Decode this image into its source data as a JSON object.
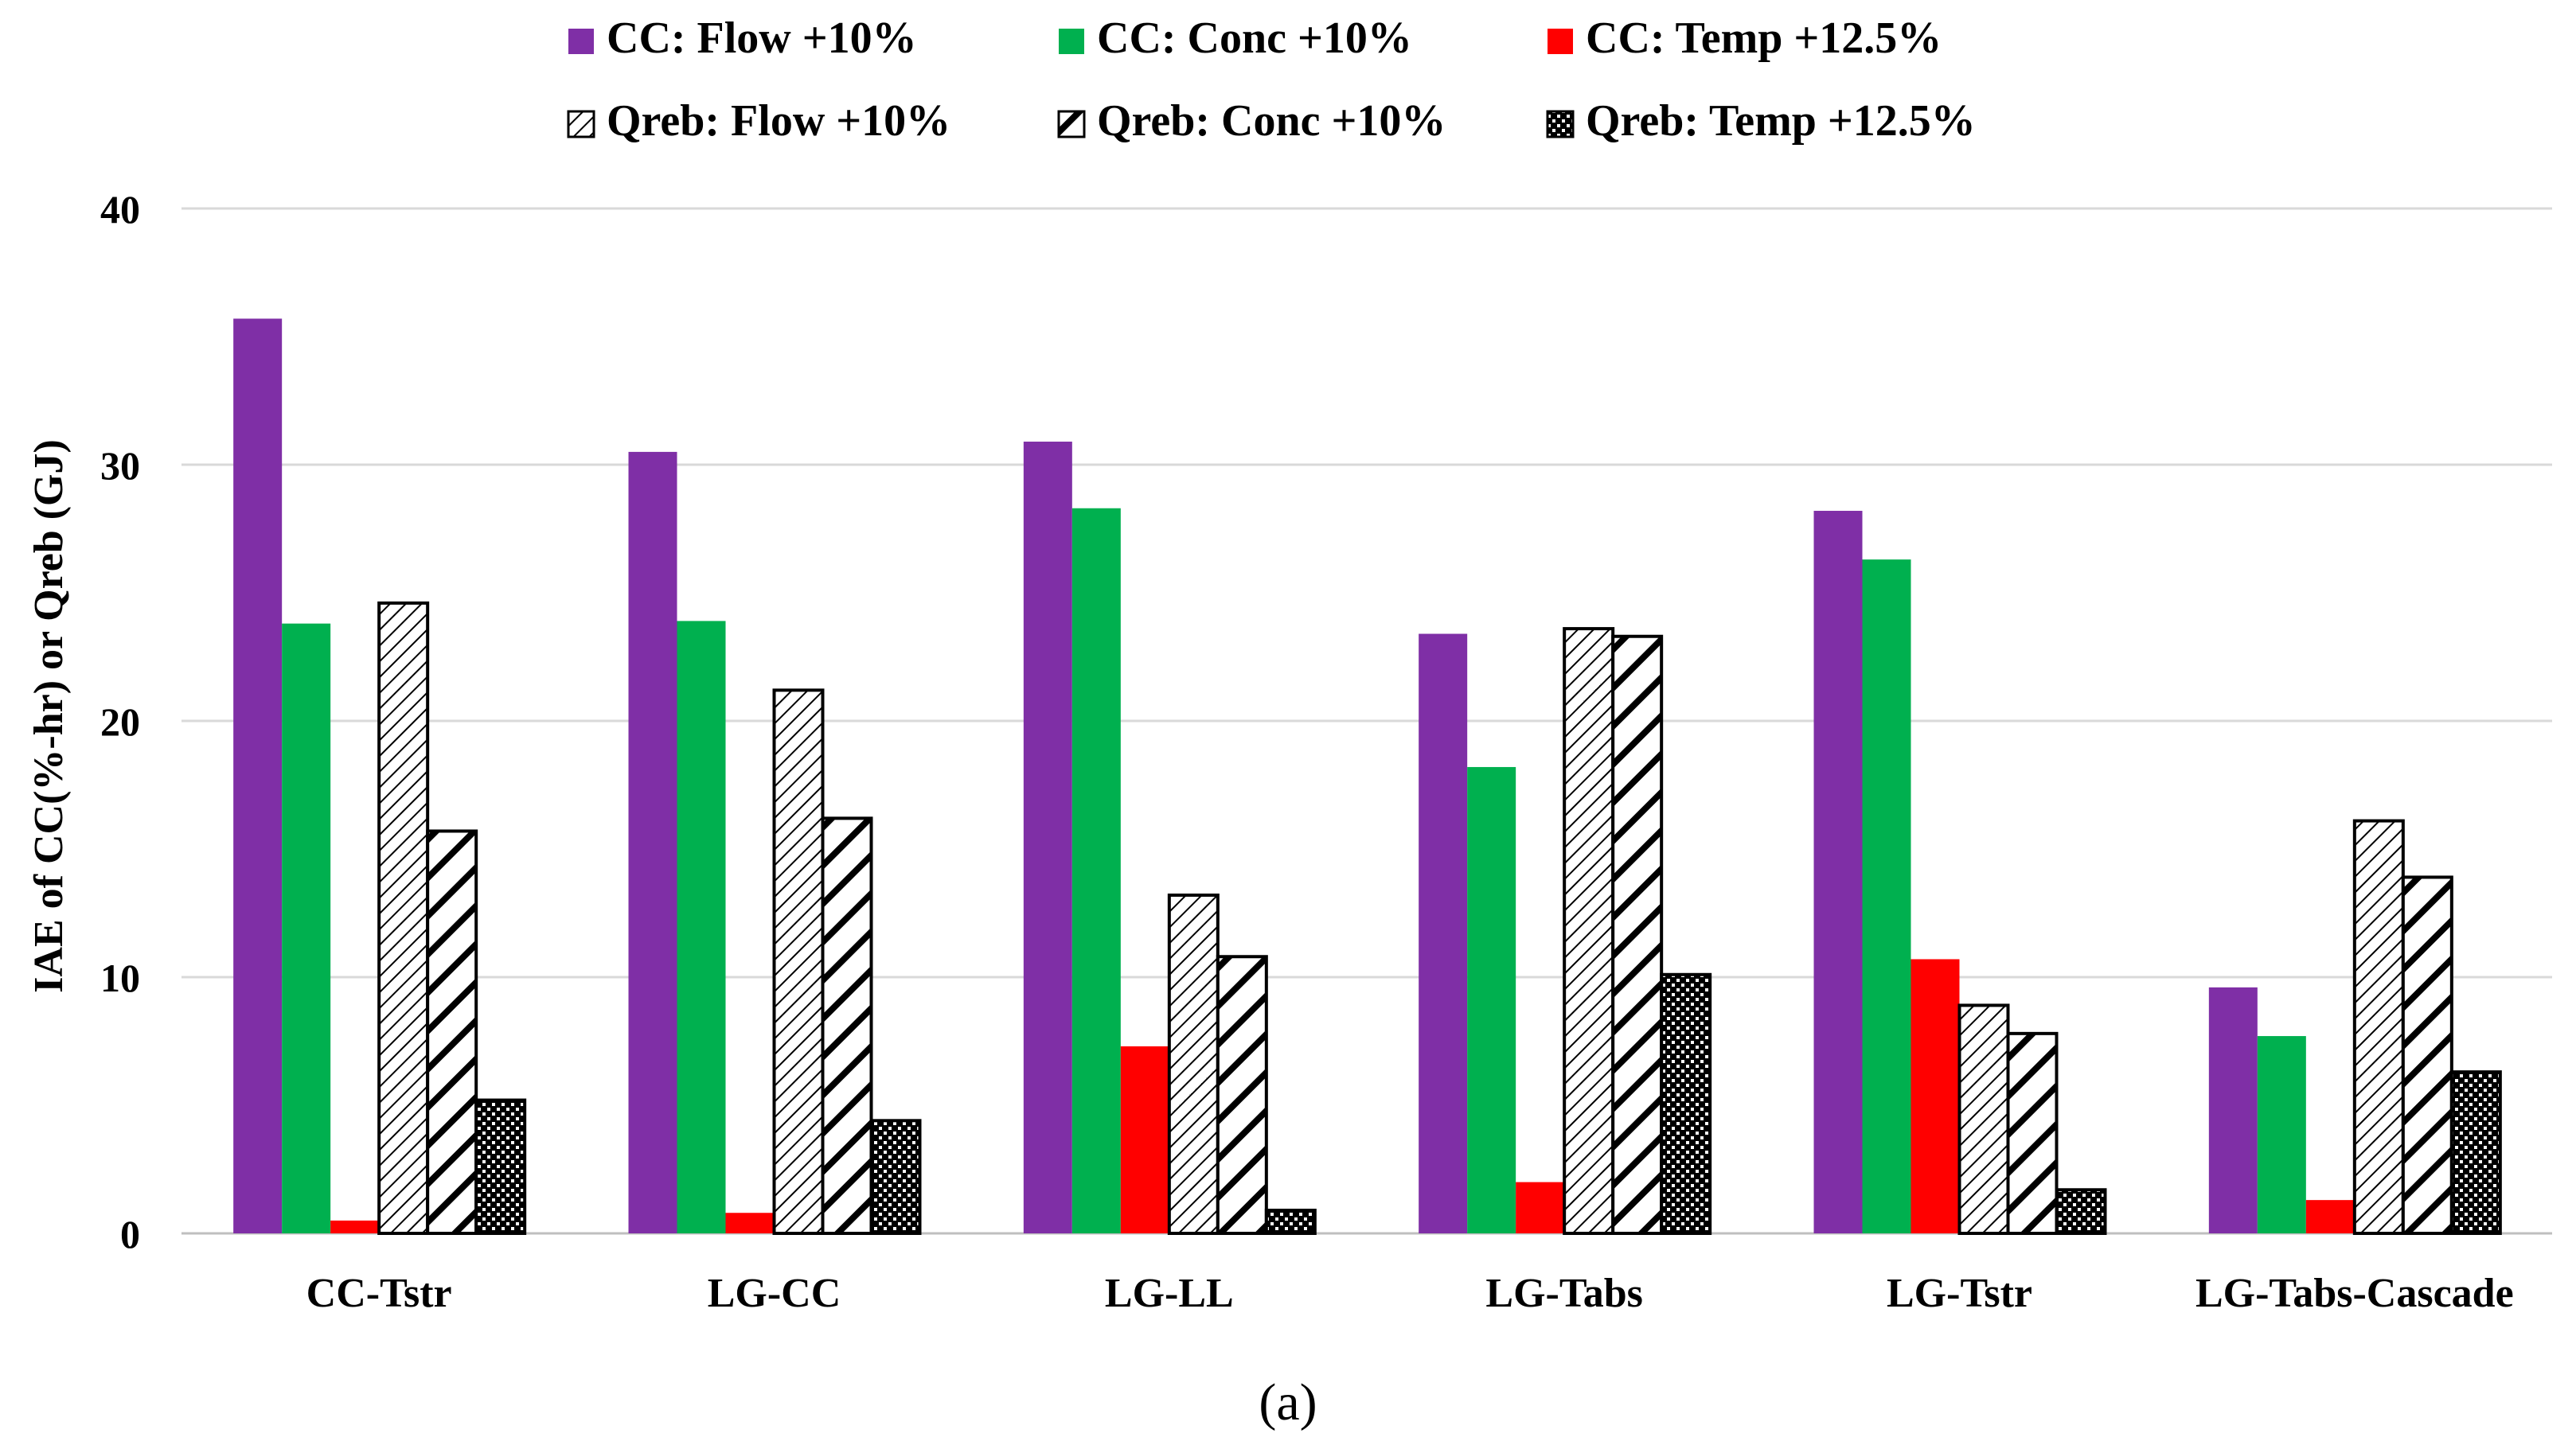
{
  "chart_data": {
    "type": "bar",
    "title": "",
    "caption": "(a)",
    "xlabel": "",
    "ylabel": "IAE of CC(%-hr) or Qreb (GJ)",
    "ylim": [
      0,
      40
    ],
    "yticks": [
      0,
      10,
      20,
      30,
      40
    ],
    "grid": true,
    "legend_position": "top",
    "categories": [
      "CC-Tstr",
      "LG-CC",
      "LG-LL",
      "LG-Tabs",
      "LG-Tstr",
      "LG-Tabs-Cascade"
    ],
    "series": [
      {
        "name": "CC: Flow +10%",
        "color": "#7f2fa6",
        "pattern": "solid",
        "values": [
          35.7,
          30.5,
          30.9,
          23.4,
          28.2,
          9.6
        ]
      },
      {
        "name": "CC: Conc +10%",
        "color": "#00b04f",
        "pattern": "solid",
        "values": [
          23.8,
          23.9,
          28.3,
          18.2,
          26.3,
          7.7
        ]
      },
      {
        "name": "CC: Temp +12.5%",
        "color": "#ff0000",
        "pattern": "solid",
        "values": [
          0.5,
          0.8,
          7.3,
          2.0,
          10.7,
          1.3
        ]
      },
      {
        "name": "Qreb: Flow +10%",
        "color": "#000000",
        "pattern": "light-diagonal",
        "values": [
          24.6,
          21.2,
          13.2,
          23.6,
          8.9,
          16.1
        ]
      },
      {
        "name": "Qreb: Conc +10%",
        "color": "#000000",
        "pattern": "wide-diagonal",
        "values": [
          15.7,
          16.2,
          10.8,
          23.3,
          7.8,
          13.9
        ]
      },
      {
        "name": "Qreb: Temp +12.5%",
        "color": "#000000",
        "pattern": "checker",
        "values": [
          5.2,
          4.4,
          0.9,
          10.1,
          1.7,
          6.3
        ]
      }
    ]
  }
}
